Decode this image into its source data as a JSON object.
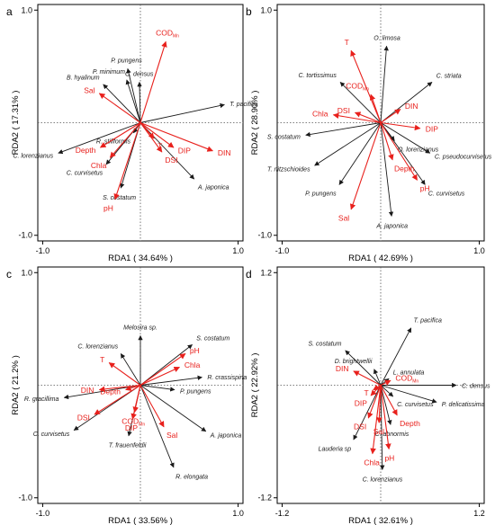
{
  "colors": {
    "species": "#1a1a1a",
    "env": "#e8201c",
    "frame": "#000000",
    "dotted": "#555555"
  },
  "chart_data": [
    {
      "type": "scatter",
      "subtype": "rda-biplot",
      "panel_letter": "a",
      "xlabel": "RDA1 ( 34.64% )",
      "ylabel": "RDA2 ( 17.31% )",
      "xlim": [
        -1.05,
        1.05
      ],
      "ylim": [
        -1.05,
        1.05
      ],
      "ticks_x": [
        {
          "v": -1.0,
          "label": "-1.0"
        },
        {
          "v": 1.0,
          "label": "1.0"
        }
      ],
      "ticks_y": [
        {
          "v": -1.0,
          "label": "-1.0"
        },
        {
          "v": 1.0,
          "label": "1.0"
        }
      ],
      "grid": false,
      "env_arrows": [
        {
          "name": "COD",
          "sub": "Mn",
          "x": 0.26,
          "y": 0.72
        },
        {
          "name": "Sal",
          "x": -0.42,
          "y": 0.26
        },
        {
          "name": "Depth",
          "x": -0.41,
          "y": -0.22
        },
        {
          "name": "Chla",
          "x": -0.31,
          "y": -0.31
        },
        {
          "name": "pH",
          "x": -0.26,
          "y": -0.68
        },
        {
          "name": "DIP",
          "x": 0.34,
          "y": -0.22
        },
        {
          "name": "DSI",
          "x": 0.22,
          "y": -0.26
        },
        {
          "name": "DIN",
          "x": 0.74,
          "y": -0.25
        },
        {
          "name": "T",
          "x": 0.14,
          "y": -0.14
        }
      ],
      "species_arrows": [
        {
          "name": "T. pacifica",
          "x": 0.86,
          "y": 0.16
        },
        {
          "name": "P. pungens",
          "x": -0.13,
          "y": 0.48
        },
        {
          "name": "P. minimum",
          "x": -0.14,
          "y": 0.38
        },
        {
          "name": "C. densus",
          "x": -0.01,
          "y": 0.36
        },
        {
          "name": "B. hyalinum",
          "x": -0.38,
          "y": 0.34
        },
        {
          "name": "R. stiliformis",
          "x": -0.07,
          "y": -0.09
        },
        {
          "name": "C. lorenzianus",
          "x": -0.84,
          "y": -0.27
        },
        {
          "name": "C. curvisetus",
          "x": -0.35,
          "y": -0.37
        },
        {
          "name": "S. costatum",
          "x": -0.2,
          "y": -0.58
        },
        {
          "name": "A. japonica",
          "x": 0.55,
          "y": -0.5
        }
      ]
    },
    {
      "type": "scatter",
      "subtype": "rda-biplot",
      "panel_letter": "b",
      "xlabel": "RDA1 ( 42.69% )",
      "ylabel": "RDA2 ( 28.90% )",
      "xlim": [
        -1.05,
        1.05
      ],
      "ylim": [
        -1.05,
        1.05
      ],
      "ticks_x": [
        {
          "v": -1.0,
          "label": "-1.0"
        },
        {
          "v": 1.0,
          "label": "1.0"
        }
      ],
      "ticks_y": [
        {
          "v": -1.0,
          "label": "-1.0"
        },
        {
          "v": 1.0,
          "label": "1.0"
        }
      ],
      "grid": false,
      "env_arrows": [
        {
          "name": "T",
          "x": -0.3,
          "y": 0.64
        },
        {
          "name": "COD",
          "sub": "Mn",
          "x": -0.1,
          "y": 0.25
        },
        {
          "name": "Chla",
          "x": -0.48,
          "y": 0.07
        },
        {
          "name": "DSI",
          "x": -0.26,
          "y": 0.09
        },
        {
          "name": "DIN",
          "x": 0.2,
          "y": 0.12
        },
        {
          "name": "DIP",
          "x": 0.4,
          "y": -0.05
        },
        {
          "name": "Depth",
          "x": 0.12,
          "y": -0.33
        },
        {
          "name": "pH",
          "x": 0.37,
          "y": -0.51
        },
        {
          "name": "Sal",
          "x": -0.3,
          "y": -0.77
        }
      ],
      "species_arrows": [
        {
          "name": "O. limosa",
          "x": 0.06,
          "y": 0.68
        },
        {
          "name": "C. tortissimus",
          "x": -0.41,
          "y": 0.36
        },
        {
          "name": "C. striata",
          "x": 0.52,
          "y": 0.36
        },
        {
          "name": "O. lorenzianus",
          "x": 0.14,
          "y": -0.16
        },
        {
          "name": "C. pseudocurvisetus",
          "x": 0.5,
          "y": -0.27
        },
        {
          "name": "C. curvisetus",
          "x": 0.45,
          "y": -0.55
        },
        {
          "name": "S. costatum",
          "x": -0.76,
          "y": -0.11
        },
        {
          "name": "T. nitzschioides",
          "x": -0.67,
          "y": -0.38
        },
        {
          "name": "P. pungens",
          "x": -0.42,
          "y": -0.55
        },
        {
          "name": "A. japonica",
          "x": 0.11,
          "y": -0.83
        }
      ]
    },
    {
      "type": "scatter",
      "subtype": "rda-biplot",
      "panel_letter": "c",
      "xlabel": "RDA1 ( 33.56% )",
      "ylabel": "RDA2 ( 21.2% )",
      "xlim": [
        -1.05,
        1.05
      ],
      "ylim": [
        -1.05,
        1.05
      ],
      "ticks_x": [
        {
          "v": -1.0,
          "label": "-1.0"
        },
        {
          "v": 1.0,
          "label": "1.0"
        }
      ],
      "ticks_y": [
        {
          "v": -1.0,
          "label": "-1.0"
        },
        {
          "v": 1.0,
          "label": "1.0"
        }
      ],
      "grid": false,
      "env_arrows": [
        {
          "name": "T",
          "x": -0.32,
          "y": 0.2
        },
        {
          "name": "pH",
          "x": 0.46,
          "y": 0.28
        },
        {
          "name": "Chla",
          "x": 0.4,
          "y": 0.16
        },
        {
          "name": "DIN",
          "x": -0.42,
          "y": -0.04
        },
        {
          "name": "Depth",
          "x": -0.15,
          "y": -0.04
        },
        {
          "name": "DSI",
          "x": -0.47,
          "y": -0.26
        },
        {
          "name": "COD",
          "sub": "Mn",
          "x": -0.06,
          "y": -0.24
        },
        {
          "name": "DIP",
          "x": -0.08,
          "y": -0.3
        },
        {
          "name": "Sal",
          "x": 0.24,
          "y": -0.37
        }
      ],
      "species_arrows": [
        {
          "name": "Melosira sp.",
          "x": 0.0,
          "y": 0.44
        },
        {
          "name": "C. lorenzianus",
          "x": -0.2,
          "y": 0.28
        },
        {
          "name": "S. costatum",
          "x": 0.53,
          "y": 0.36
        },
        {
          "name": "R. crassispina",
          "x": 0.63,
          "y": 0.07
        },
        {
          "name": "P. pungens",
          "x": 0.35,
          "y": -0.04
        },
        {
          "name": "R. gracillima",
          "x": -0.78,
          "y": -0.11
        },
        {
          "name": "C. curvisetus",
          "x": -0.68,
          "y": -0.4
        },
        {
          "name": "T. frauenfeldii",
          "x": -0.12,
          "y": -0.45
        },
        {
          "name": "A. japonica",
          "x": 0.67,
          "y": -0.41
        },
        {
          "name": "R. elongata",
          "x": 0.34,
          "y": -0.73
        }
      ]
    },
    {
      "type": "scatter",
      "subtype": "rda-biplot",
      "panel_letter": "d",
      "xlabel": "RDA1 ( 32.61% )",
      "ylabel": "RDA2 ( 22.92% )",
      "xlim": [
        -1.26,
        1.26
      ],
      "ylim": [
        -1.26,
        1.26
      ],
      "ticks_x": [
        {
          "v": -1.2,
          "label": "-1.2"
        },
        {
          "v": 1.2,
          "label": "1.2"
        }
      ],
      "ticks_y": [
        {
          "v": -1.2,
          "label": "-1.2"
        },
        {
          "v": 1.2,
          "label": "1.2"
        }
      ],
      "grid": false,
      "env_arrows": [
        {
          "name": "DIN",
          "x": -0.33,
          "y": 0.15
        },
        {
          "name": "COD",
          "sub": "Mn",
          "x": 0.12,
          "y": 0.05
        },
        {
          "name": "T",
          "x": -0.09,
          "y": -0.05
        },
        {
          "name": "DIP",
          "x": -0.12,
          "y": -0.11
        },
        {
          "name": "Depth",
          "x": 0.2,
          "y": -0.32
        },
        {
          "name": "DSI",
          "x": -0.15,
          "y": -0.35
        },
        {
          "name": "Sal",
          "x": -0.02,
          "y": -0.4
        },
        {
          "name": "pH",
          "x": 0.1,
          "y": -0.68
        },
        {
          "name": "Chla",
          "x": -0.1,
          "y": -0.73
        }
      ],
      "species_arrows": [
        {
          "name": "T. pacifica",
          "x": 0.37,
          "y": 0.61
        },
        {
          "name": "S. costatum",
          "x": -0.43,
          "y": 0.37
        },
        {
          "name": "D. brightwellii",
          "x": -0.08,
          "y": 0.17
        },
        {
          "name": "L. annulata",
          "x": 0.1,
          "y": 0.07
        },
        {
          "name": "C. densus",
          "x": 0.92,
          "y": 0.0
        },
        {
          "name": "P. delicatissima",
          "x": 0.68,
          "y": -0.18
        },
        {
          "name": "C. curvisetus",
          "x": 0.15,
          "y": -0.12
        },
        {
          "name": "C. abnormis",
          "x": 0.12,
          "y": -0.42
        },
        {
          "name": "Lauderia sp",
          "x": -0.33,
          "y": -0.58
        },
        {
          "name": "C. lorenzianus",
          "x": 0.02,
          "y": -0.9
        }
      ]
    }
  ]
}
